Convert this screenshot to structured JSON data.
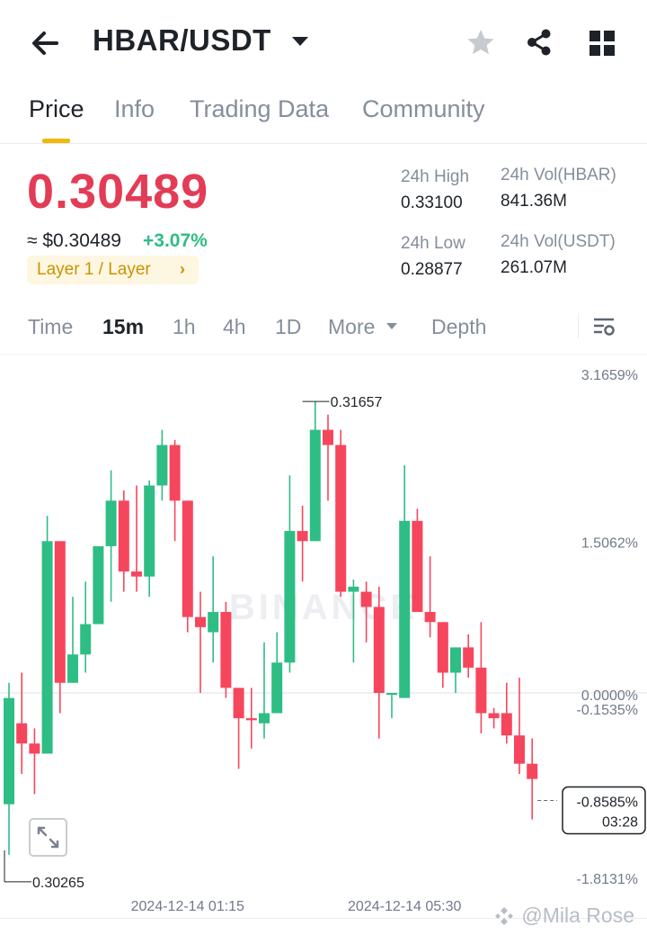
{
  "header": {
    "pair": "HBAR/USDT",
    "icons": [
      "back-arrow-icon",
      "caret-down-icon",
      "star-icon",
      "share-icon",
      "grid-icon"
    ]
  },
  "tabs": [
    {
      "label": "Price",
      "active": true
    },
    {
      "label": "Info"
    },
    {
      "label": "Trading Data"
    },
    {
      "label": "Community"
    }
  ],
  "ticker": {
    "last_price": "0.30489",
    "approx": "≈ $0.30489",
    "change": "+3.07%",
    "tag": "Layer 1 / Layer",
    "stats": {
      "high_label": "24h High",
      "high": "0.33100",
      "low_label": "24h Low",
      "low": "0.28877",
      "vol_base_label": "24h Vol(HBAR)",
      "vol_base": "841.36M",
      "vol_quote_label": "24h Vol(USDT)",
      "vol_quote": "261.07M"
    }
  },
  "intervals": {
    "items": [
      "Time",
      "15m",
      "1h",
      "4h",
      "1D",
      "More",
      "Depth"
    ],
    "active": "15m"
  },
  "colors": {
    "up": "#2ebd85",
    "down": "#f6465d",
    "accent": "#f0b90b"
  },
  "chart_data": {
    "type": "candlestick",
    "y_scale": "percent change",
    "ylim": [
      -2.1,
      3.3
    ],
    "y_tick_labels": [
      "3.1659%",
      "1.5062%",
      "0.0000%",
      "-0.1535%",
      "-1.8131%"
    ],
    "y_ticks": [
      3.1659,
      1.5062,
      0.0,
      -0.1535,
      -1.8131
    ],
    "x_tick_labels": [
      "2024-12-14 01:15",
      "2024-12-14 05:30"
    ],
    "x_tick_candles": [
      14,
      31
    ],
    "annotations": {
      "high": "0.31657",
      "low": "0.30265"
    },
    "annotation_pct": {
      "high": 2.88,
      "low": -1.6
    },
    "annotation_candles": {
      "high": 23,
      "low": 0
    },
    "current": {
      "pct_label": "-0.8585%",
      "countdown": "03:28",
      "pct": -0.8585
    },
    "watermark": "BINANCE",
    "candles": [
      {
        "o": -1.1,
        "h": 0.1,
        "l": -1.6,
        "c": -0.05
      },
      {
        "o": -0.3,
        "h": 0.2,
        "l": -0.8,
        "c": -0.5
      },
      {
        "o": -0.5,
        "h": -0.35,
        "l": -1.0,
        "c": -0.6
      },
      {
        "o": -0.6,
        "h": 1.75,
        "l": -0.6,
        "c": 1.5
      },
      {
        "o": 1.5,
        "h": 1.5,
        "l": -0.2,
        "c": 0.1
      },
      {
        "o": 0.1,
        "h": 0.95,
        "l": 0.1,
        "c": 0.38
      },
      {
        "o": 0.38,
        "h": 1.1,
        "l": 0.2,
        "c": 0.68
      },
      {
        "o": 0.68,
        "h": 1.45,
        "l": 0.68,
        "c": 1.45
      },
      {
        "o": 1.45,
        "h": 2.2,
        "l": 0.9,
        "c": 1.9
      },
      {
        "o": 1.9,
        "h": 2.0,
        "l": 1.0,
        "c": 1.2
      },
      {
        "o": 1.2,
        "h": 2.05,
        "l": 1.0,
        "c": 1.15
      },
      {
        "o": 1.15,
        "h": 2.1,
        "l": 0.95,
        "c": 2.05
      },
      {
        "o": 2.05,
        "h": 2.6,
        "l": 1.9,
        "c": 2.45
      },
      {
        "o": 2.45,
        "h": 2.5,
        "l": 1.5,
        "c": 1.9
      },
      {
        "o": 1.9,
        "h": 1.9,
        "l": 0.6,
        "c": 0.75
      },
      {
        "o": 0.75,
        "h": 1.0,
        "l": 0.0,
        "c": 0.65
      },
      {
        "o": 0.6,
        "h": 1.35,
        "l": 0.3,
        "c": 0.8
      },
      {
        "o": 0.8,
        "h": 0.9,
        "l": -0.05,
        "c": 0.05
      },
      {
        "o": 0.05,
        "h": 0.05,
        "l": -0.75,
        "c": -0.25
      },
      {
        "o": -0.25,
        "h": 0.05,
        "l": -0.55,
        "c": -0.27
      },
      {
        "o": -0.3,
        "h": 0.5,
        "l": -0.45,
        "c": -0.2
      },
      {
        "o": -0.2,
        "h": 0.6,
        "l": -0.2,
        "c": 0.3
      },
      {
        "o": 0.3,
        "h": 2.15,
        "l": 0.2,
        "c": 1.6
      },
      {
        "o": 1.6,
        "h": 1.85,
        "l": 1.1,
        "c": 1.5
      },
      {
        "o": 1.5,
        "h": 2.88,
        "l": 1.5,
        "c": 2.6
      },
      {
        "o": 2.6,
        "h": 2.75,
        "l": 1.9,
        "c": 2.45
      },
      {
        "o": 2.45,
        "h": 2.6,
        "l": 0.95,
        "c": 1.0
      },
      {
        "o": 1.0,
        "h": 1.12,
        "l": 0.3,
        "c": 1.05
      },
      {
        "o": 1.0,
        "h": 1.1,
        "l": 0.5,
        "c": 0.85
      },
      {
        "o": 0.85,
        "h": 1.05,
        "l": -0.45,
        "c": 0.0
      },
      {
        "o": 0.0,
        "h": 0.0,
        "l": -0.25,
        "c": 0.0
      },
      {
        "o": -0.05,
        "h": 2.25,
        "l": -0.05,
        "c": 1.7
      },
      {
        "o": 1.7,
        "h": 1.82,
        "l": 0.8,
        "c": 0.8
      },
      {
        "o": 0.8,
        "h": 1.35,
        "l": 0.55,
        "c": 0.7
      },
      {
        "o": 0.7,
        "h": 0.7,
        "l": 0.05,
        "c": 0.2
      },
      {
        "o": 0.2,
        "h": 0.45,
        "l": 0.0,
        "c": 0.45
      },
      {
        "o": 0.45,
        "h": 0.58,
        "l": 0.15,
        "c": 0.25
      },
      {
        "o": 0.25,
        "h": 0.7,
        "l": -0.4,
        "c": -0.2
      },
      {
        "o": -0.2,
        "h": -0.15,
        "l": -0.35,
        "c": -0.25
      },
      {
        "o": -0.2,
        "h": 0.1,
        "l": -0.5,
        "c": -0.42
      },
      {
        "o": -0.42,
        "h": 0.15,
        "l": -0.8,
        "c": -0.7
      },
      {
        "o": -0.7,
        "h": -0.45,
        "l": -1.25,
        "c": -0.85
      }
    ]
  },
  "user_watermark": "@Mila Rose"
}
